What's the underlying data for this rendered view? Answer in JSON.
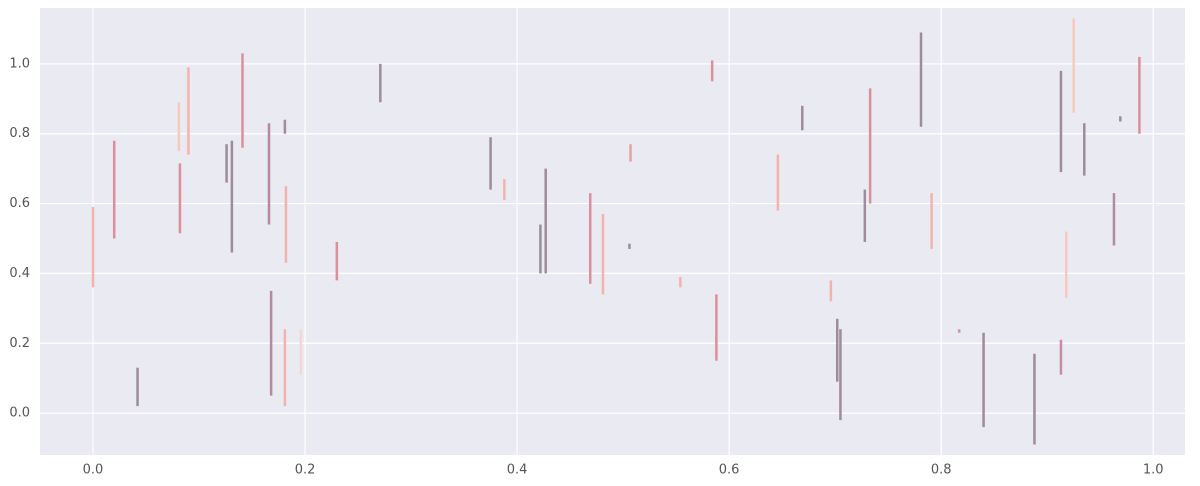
{
  "chart_data": {
    "type": "vlines",
    "x": [
      0.0,
      0.02,
      0.042,
      0.081,
      0.082,
      0.09,
      0.126,
      0.131,
      0.141,
      0.166,
      0.168,
      0.181,
      0.182,
      0.181,
      0.196,
      0.23,
      0.271,
      0.375,
      0.388,
      0.422,
      0.427,
      0.469,
      0.481,
      0.506,
      0.507,
      0.554,
      0.584,
      0.588,
      0.646,
      0.669,
      0.696,
      0.702,
      0.705,
      0.728,
      0.733,
      0.781,
      0.791,
      0.817,
      0.84,
      0.888,
      0.913,
      0.913,
      0.918,
      0.925,
      0.935,
      0.963,
      0.969,
      0.987
    ],
    "ymin": [
      0.36,
      0.5,
      0.02,
      0.75,
      0.515,
      0.74,
      0.66,
      0.46,
      0.76,
      0.54,
      0.05,
      0.8,
      0.43,
      0.02,
      0.11,
      0.38,
      0.89,
      0.64,
      0.61,
      0.4,
      0.4,
      0.37,
      0.34,
      0.47,
      0.72,
      0.36,
      0.95,
      0.15,
      0.58,
      0.81,
      0.32,
      0.09,
      -0.02,
      0.49,
      0.6,
      0.82,
      0.47,
      0.23,
      -0.04,
      -0.09,
      0.11,
      0.69,
      0.33,
      0.86,
      0.68,
      0.48,
      0.835,
      0.8
    ],
    "ymax": [
      0.59,
      0.78,
      0.13,
      0.89,
      0.715,
      0.99,
      0.77,
      0.78,
      1.03,
      0.83,
      0.35,
      0.84,
      0.65,
      0.24,
      0.24,
      0.49,
      1.0,
      0.79,
      0.67,
      0.54,
      0.7,
      0.63,
      0.57,
      0.485,
      0.77,
      0.39,
      1.01,
      0.34,
      0.74,
      0.88,
      0.38,
      0.27,
      0.24,
      0.64,
      0.93,
      1.09,
      0.63,
      0.24,
      0.23,
      0.17,
      0.21,
      0.98,
      0.52,
      1.13,
      0.83,
      0.63,
      0.85,
      1.02
    ],
    "colors": [
      "#f3b3aa",
      "#dc8f9b",
      "#9e8b9c",
      "#f7c9bf",
      "#dc8f9b",
      "#f3b3aa",
      "#9e8b9c",
      "#9e8b9c",
      "#dc8f9b",
      "#b48a9c",
      "#b48a9c",
      "#9e8b9c",
      "#f3b3aa",
      "#f3b3aa",
      "#f7d6cf",
      "#dc8f9b",
      "#9e8b9c",
      "#9e8b9c",
      "#f3b3aa",
      "#9e8b9c",
      "#9e8b9c",
      "#dc8f9b",
      "#f3b3aa",
      "#9e8b9c",
      "#e9a0a4",
      "#f3b3aa",
      "#dc8f9b",
      "#dc8f9b",
      "#f3b3aa",
      "#9e8b9c",
      "#f3b3aa",
      "#9e8b9c",
      "#9e8b9c",
      "#9e8b9c",
      "#dc8f9b",
      "#9e8b9c",
      "#f3b3aa",
      "#dc8f9b",
      "#9e8b9c",
      "#9e8b9c",
      "#c58d9e",
      "#9e8b9c",
      "#f7c9bf",
      "#f7c9bf",
      "#9e8b9c",
      "#b48a9c",
      "#9e8b9c",
      "#dc8f9b"
    ],
    "xlim": [
      -0.05,
      1.03
    ],
    "ylim": [
      -0.12,
      1.16
    ],
    "xticks": [
      {
        "value": 0,
        "label": "0.0"
      },
      0.2,
      0.4,
      0.6,
      0.8,
      {
        "value": 1,
        "label": "1.0"
      }
    ],
    "yticks": [
      {
        "value": 0,
        "label": "0.0"
      },
      0.2,
      0.4,
      0.6,
      0.8,
      {
        "value": 1,
        "label": "1.0"
      }
    ],
    "grid": true
  }
}
